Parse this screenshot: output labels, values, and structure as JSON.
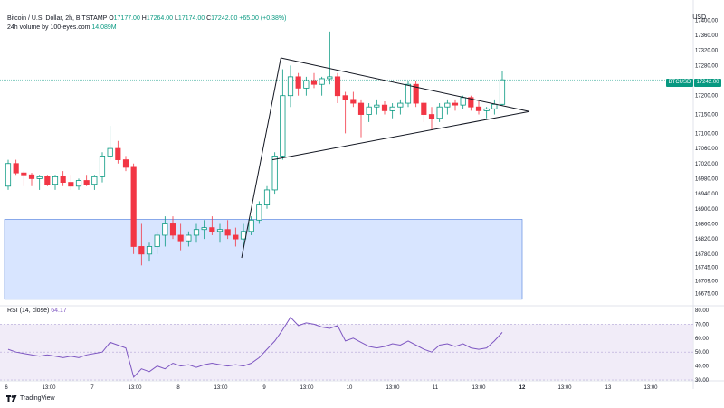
{
  "legend": {
    "title": "Bitcoin / U.S. Dollar, 2h, BITSTAMP",
    "o_label": "O",
    "o_value": "17177.00",
    "h_label": "H",
    "h_value": "17264.00",
    "l_label": "L",
    "l_value": "17174.00",
    "c_label": "C",
    "c_value": "17242.00",
    "change": "+65.00 (+0.38%)",
    "volume_label": "24h volume by 100-eyes.com",
    "volume_value": "14.089M"
  },
  "currency": "USD",
  "price_tag": {
    "symbol": "BTCUSD",
    "price": "17242.00"
  },
  "rsi": {
    "label": "RSI (14, close)",
    "value": "64.17"
  },
  "footer": {
    "brand": "TradingView"
  },
  "colors": {
    "up": "#089981",
    "down": "#f23645",
    "rsi": "#7e57c2",
    "rsi_band": "#ede7f6",
    "demand_zone": "#d6e4ff",
    "demand_zone_border": "#4a7bdc"
  },
  "price_axis": {
    "labels": [
      "17400.00",
      "17360.00",
      "17320.00",
      "17280.00",
      "17242.00",
      "17200.00",
      "17150.00",
      "17100.00",
      "17060.00",
      "17020.00",
      "16980.00",
      "16940.00",
      "16900.00",
      "16860.00",
      "16820.00",
      "16780.00",
      "16745.00",
      "16709.00",
      "16675.00"
    ]
  },
  "rsi_axis": {
    "labels": [
      "80.00",
      "70.00",
      "60.00",
      "50.00",
      "40.00",
      "30.00"
    ]
  },
  "time_axis": {
    "labels": [
      "6",
      "13:00",
      "7",
      "13:00",
      "8",
      "13:00",
      "9",
      "13:00",
      "10",
      "13:00",
      "11",
      "13:00",
      "12",
      "13:00",
      "13",
      "13:00"
    ]
  },
  "chart_data": {
    "type": "candlestick",
    "candles": [
      [
        16960,
        17030,
        16950,
        17020
      ],
      [
        17020,
        17030,
        16990,
        16995
      ],
      [
        16995,
        17000,
        16960,
        16990
      ],
      [
        16990,
        16995,
        16960,
        16980
      ],
      [
        16980,
        16990,
        16950,
        16985
      ],
      [
        16985,
        16990,
        16960,
        16965
      ],
      [
        16965,
        16990,
        16950,
        16985
      ],
      [
        16985,
        17000,
        16960,
        16970
      ],
      [
        16970,
        16990,
        16950,
        16960
      ],
      [
        16960,
        16980,
        16950,
        16975
      ],
      [
        16975,
        16990,
        16960,
        16965
      ],
      [
        16965,
        16990,
        16950,
        16985
      ],
      [
        16985,
        17050,
        16970,
        17040
      ],
      [
        17040,
        17120,
        17030,
        17060
      ],
      [
        17060,
        17080,
        17020,
        17030
      ],
      [
        17030,
        17040,
        17000,
        17010
      ],
      [
        17010,
        17020,
        16780,
        16800
      ],
      [
        16800,
        16860,
        16750,
        16780
      ],
      [
        16780,
        16810,
        16760,
        16800
      ],
      [
        16800,
        16840,
        16780,
        16830
      ],
      [
        16830,
        16880,
        16800,
        16860
      ],
      [
        16860,
        16880,
        16820,
        16830
      ],
      [
        16830,
        16860,
        16790,
        16815
      ],
      [
        16815,
        16840,
        16800,
        16830
      ],
      [
        16830,
        16860,
        16810,
        16845
      ],
      [
        16845,
        16870,
        16820,
        16850
      ],
      [
        16850,
        16880,
        16830,
        16840
      ],
      [
        16840,
        16860,
        16810,
        16845
      ],
      [
        16845,
        16870,
        16820,
        16830
      ],
      [
        16830,
        16850,
        16800,
        16820
      ],
      [
        16820,
        16860,
        16800,
        16840
      ],
      [
        16840,
        16880,
        16830,
        16870
      ],
      [
        16870,
        16920,
        16860,
        16910
      ],
      [
        16910,
        16960,
        16900,
        16950
      ],
      [
        16950,
        17050,
        16940,
        17040
      ],
      [
        17040,
        17270,
        17030,
        17200
      ],
      [
        17200,
        17280,
        17170,
        17250
      ],
      [
        17250,
        17260,
        17200,
        17220
      ],
      [
        17220,
        17250,
        17200,
        17240
      ],
      [
        17240,
        17260,
        17220,
        17230
      ],
      [
        17230,
        17250,
        17200,
        17245
      ],
      [
        17245,
        17370,
        17230,
        17250
      ],
      [
        17250,
        17260,
        17180,
        17200
      ],
      [
        17200,
        17210,
        17100,
        17190
      ],
      [
        17190,
        17210,
        17170,
        17180
      ],
      [
        17180,
        17190,
        17090,
        17150
      ],
      [
        17150,
        17180,
        17130,
        17170
      ],
      [
        17170,
        17190,
        17150,
        17175
      ],
      [
        17175,
        17185,
        17150,
        17160
      ],
      [
        17160,
        17180,
        17140,
        17170
      ],
      [
        17170,
        17190,
        17150,
        17180
      ],
      [
        17180,
        17240,
        17170,
        17230
      ],
      [
        17230,
        17240,
        17170,
        17180
      ],
      [
        17180,
        17190,
        17130,
        17150
      ],
      [
        17150,
        17170,
        17110,
        17140
      ],
      [
        17140,
        17180,
        17130,
        17170
      ],
      [
        17170,
        17190,
        17150,
        17180
      ],
      [
        17180,
        17190,
        17160,
        17175
      ],
      [
        17175,
        17200,
        17165,
        17195
      ],
      [
        17195,
        17200,
        17160,
        17170
      ],
      [
        17170,
        17185,
        17150,
        17160
      ],
      [
        17160,
        17170,
        17140,
        17165
      ],
      [
        17165,
        17190,
        17150,
        17177
      ],
      [
        17177,
        17264,
        17174,
        17242
      ]
    ],
    "triangle": {
      "top": {
        "start": 17300,
        "end": 17158
      },
      "bottom": {
        "start": 17030,
        "end": 17158
      },
      "impulse_low": 16770
    },
    "demand_zone": {
      "high": 16872,
      "low": 16660
    },
    "rsi_values": [
      52,
      50,
      49,
      48,
      47,
      48,
      47,
      46,
      47,
      46,
      48,
      49,
      50,
      57,
      55,
      53,
      32,
      38,
      36,
      40,
      38,
      42,
      40,
      41,
      39,
      41,
      42,
      41,
      40,
      41,
      40,
      42,
      46,
      52,
      58,
      66,
      75,
      69,
      71,
      70,
      68,
      67,
      69,
      58,
      60,
      57,
      54,
      53,
      54,
      56,
      55,
      58,
      55,
      52,
      50,
      55,
      56,
      54,
      56,
      53,
      52,
      53,
      58,
      64.17
    ],
    "rsi_range": [
      30,
      80
    ],
    "price_range": [
      16650,
      17420
    ],
    "current_price": 17242
  }
}
